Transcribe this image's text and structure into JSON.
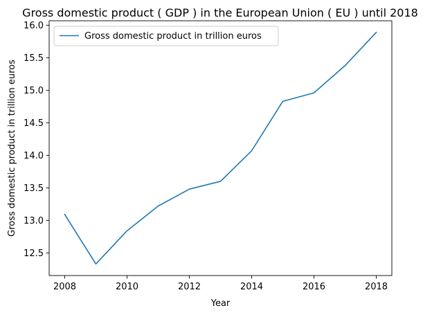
{
  "chart_data": {
    "type": "line",
    "title": "Gross domestic product ( GDP ) in the European Union ( EU ) until 2018",
    "xlabel": "Year",
    "ylabel": "Gross domestic product in trillion euros",
    "x": [
      2008,
      2009,
      2010,
      2011,
      2012,
      2013,
      2014,
      2015,
      2016,
      2017,
      2018
    ],
    "series": [
      {
        "name": "Gross domestic product in trillion euros",
        "color": "#1f77b4",
        "values": [
          13.09,
          12.33,
          12.84,
          13.22,
          13.48,
          13.6,
          14.07,
          14.83,
          14.96,
          15.38,
          15.89
        ]
      }
    ],
    "xlim": [
      2007.5,
      2018.5
    ],
    "ylim": [
      12.152,
      16.068
    ],
    "xticks": [
      2008,
      2010,
      2012,
      2014,
      2016,
      2018
    ],
    "yticks": [
      12.5,
      13.0,
      13.5,
      14.0,
      14.5,
      15.0,
      15.5,
      16.0
    ],
    "ytick_labels": [
      "12.5",
      "13.0",
      "13.5",
      "14.0",
      "14.5",
      "15.0",
      "15.5",
      "16.0"
    ],
    "legend_position": "upper-left",
    "grid": false
  }
}
